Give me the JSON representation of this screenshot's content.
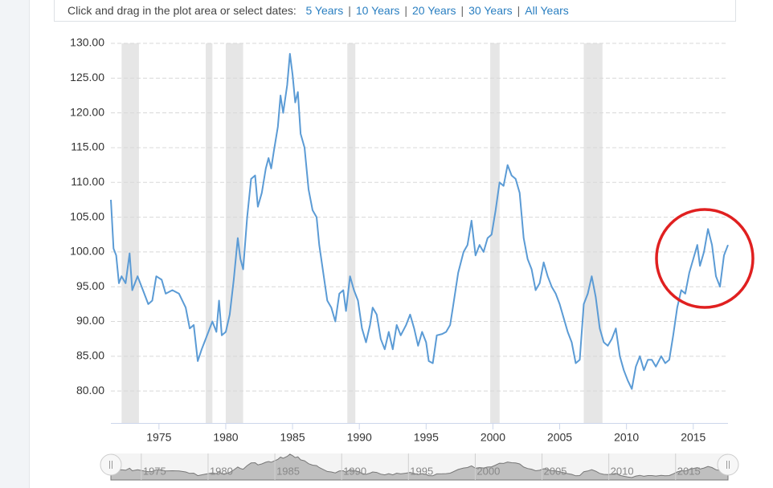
{
  "range_selector": {
    "prompt": "Click and drag in the plot area or select dates:",
    "options": [
      "5 Years",
      "10 Years",
      "20 Years",
      "30 Years",
      "All Years"
    ]
  },
  "chart_data": {
    "type": "line",
    "color": "#5b9bd5",
    "grid": true,
    "xlim": [
      1971.4,
      2017.6
    ],
    "xticks": [
      1975,
      1980,
      1985,
      1990,
      1995,
      2000,
      2005,
      2010,
      2015
    ],
    "ylim": [
      75.4,
      130
    ],
    "yticks": [
      {
        "value": 80,
        "label": "80.00"
      },
      {
        "value": 85,
        "label": "85.00"
      },
      {
        "value": 90,
        "label": "90.00"
      },
      {
        "value": 95,
        "label": "95.00"
      },
      {
        "value": 100,
        "label": "100.00"
      },
      {
        "value": 105,
        "label": "105.00"
      },
      {
        "value": 110,
        "label": "110.00"
      },
      {
        "value": 115,
        "label": "115.00"
      },
      {
        "value": 120,
        "label": "120.00"
      },
      {
        "value": 125,
        "label": "125.00"
      },
      {
        "value": 130,
        "label": "130.00"
      }
    ],
    "bands": [
      [
        1972.2,
        1973.5
      ],
      [
        1978.5,
        1979.0
      ],
      [
        1980.0,
        1981.3
      ],
      [
        1989.1,
        1989.7
      ],
      [
        1999.8,
        2000.5
      ],
      [
        2006.8,
        2008.2
      ]
    ],
    "x": [
      1971.4,
      1971.6,
      1971.8,
      1972.0,
      1972.2,
      1972.5,
      1972.8,
      1973.0,
      1973.4,
      1973.8,
      1974.2,
      1974.5,
      1974.8,
      1975.2,
      1975.5,
      1976.0,
      1976.5,
      1977.0,
      1977.3,
      1977.6,
      1977.9,
      1978.2,
      1978.6,
      1979.0,
      1979.3,
      1979.5,
      1979.7,
      1980.0,
      1980.3,
      1980.6,
      1980.9,
      1981.1,
      1981.3,
      1981.6,
      1981.9,
      1982.2,
      1982.4,
      1982.7,
      1983.0,
      1983.2,
      1983.4,
      1983.6,
      1983.9,
      1984.1,
      1984.3,
      1984.6,
      1984.8,
      1985.0,
      1985.2,
      1985.4,
      1985.6,
      1985.9,
      1986.2,
      1986.5,
      1986.8,
      1987.0,
      1987.3,
      1987.6,
      1987.9,
      1988.2,
      1988.5,
      1988.8,
      1989.0,
      1989.3,
      1989.6,
      1989.9,
      1990.2,
      1990.5,
      1990.8,
      1991.0,
      1991.3,
      1991.6,
      1991.9,
      1992.2,
      1992.5,
      1992.8,
      1993.1,
      1993.5,
      1993.8,
      1994.1,
      1994.4,
      1994.7,
      1995.0,
      1995.2,
      1995.5,
      1995.8,
      1996.2,
      1996.5,
      1996.8,
      1997.0,
      1997.4,
      1997.8,
      1998.1,
      1998.4,
      1998.7,
      1999.0,
      1999.3,
      1999.6,
      1999.9,
      2000.2,
      2000.5,
      2000.8,
      2001.1,
      2001.4,
      2001.7,
      2002.0,
      2002.3,
      2002.6,
      2002.9,
      2003.2,
      2003.5,
      2003.8,
      2004.1,
      2004.4,
      2004.7,
      2005.0,
      2005.3,
      2005.6,
      2005.9,
      2006.2,
      2006.5,
      2006.8,
      2007.1,
      2007.4,
      2007.7,
      2008.0,
      2008.3,
      2008.6,
      2008.9,
      2009.2,
      2009.5,
      2009.8,
      2010.1,
      2010.4,
      2010.7,
      2011.0,
      2011.3,
      2011.6,
      2011.9,
      2012.2,
      2012.6,
      2012.9,
      2013.2,
      2013.5,
      2013.8,
      2014.1,
      2014.4,
      2014.7,
      2015.0,
      2015.3,
      2015.5,
      2015.8,
      2016.1,
      2016.4,
      2016.7,
      2017.0,
      2017.3,
      2017.6
    ],
    "values": [
      107.5,
      100.5,
      99.5,
      95.5,
      96.5,
      95.5,
      99.8,
      94.5,
      96.5,
      94.5,
      92.5,
      93,
      96.5,
      96,
      94,
      94.5,
      94,
      92,
      89,
      89.5,
      84.3,
      86,
      88,
      90,
      88.5,
      93,
      88,
      88.5,
      91,
      96,
      102,
      99,
      97.5,
      105,
      110.5,
      111,
      106.5,
      108.5,
      112,
      113.5,
      112,
      114.5,
      118,
      122.5,
      120,
      124,
      128.5,
      125.5,
      121.5,
      123,
      117,
      115,
      109,
      106,
      105,
      101,
      97,
      93,
      92,
      90,
      94,
      94.5,
      91.5,
      96.5,
      94.5,
      93,
      89,
      87,
      89.5,
      92,
      91,
      87.5,
      86,
      88.5,
      86,
      89.5,
      88,
      89.5,
      91,
      89,
      86.5,
      88.5,
      87,
      84.3,
      84,
      88,
      88.2,
      88.5,
      89.5,
      92,
      97,
      100,
      101,
      104.5,
      99.5,
      101,
      100,
      102,
      102.5,
      106,
      110,
      109.5,
      112.5,
      111,
      110.5,
      108.5,
      102,
      99,
      97.5,
      94.5,
      95.5,
      98.5,
      96.5,
      95,
      94,
      92.5,
      90.5,
      88.5,
      87,
      84,
      84.5,
      92.5,
      94,
      96.5,
      93.5,
      89,
      87,
      86.5,
      87.5,
      89,
      85,
      83,
      81.5,
      80.3,
      83.5,
      85,
      83,
      84.5,
      84.5,
      83.5,
      85,
      84,
      84.5,
      88,
      92,
      94.5,
      94,
      97,
      99,
      101,
      98,
      100,
      103.3,
      101,
      96.5,
      95,
      99.5,
      101
    ]
  }
}
